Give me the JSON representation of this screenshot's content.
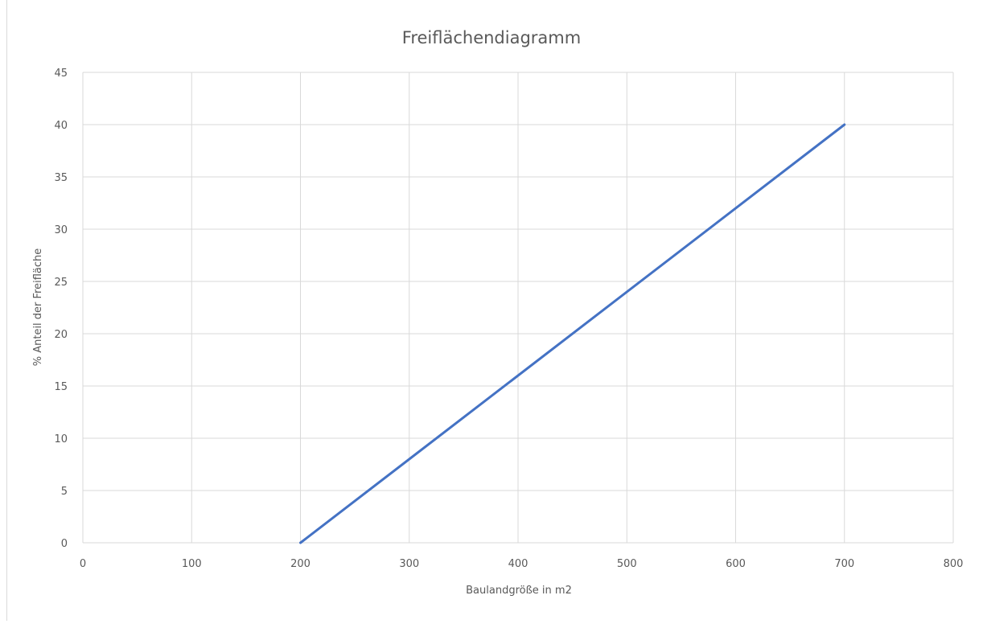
{
  "chart_data": {
    "type": "line",
    "title": "Freiflächendiagramm",
    "xlabel": "Baulandgröße in m2",
    "ylabel": "% Anteil der Freifläche",
    "xlim": [
      0,
      800
    ],
    "ylim": [
      0,
      45
    ],
    "x_ticks": [
      0,
      100,
      200,
      300,
      400,
      500,
      600,
      700,
      800
    ],
    "y_ticks": [
      0,
      5,
      10,
      15,
      20,
      25,
      30,
      35,
      40,
      45
    ],
    "grid": true,
    "legend": "none",
    "series": [
      {
        "color": "#4472c4",
        "x": [
          200,
          700
        ],
        "y": [
          0,
          40
        ]
      }
    ]
  }
}
